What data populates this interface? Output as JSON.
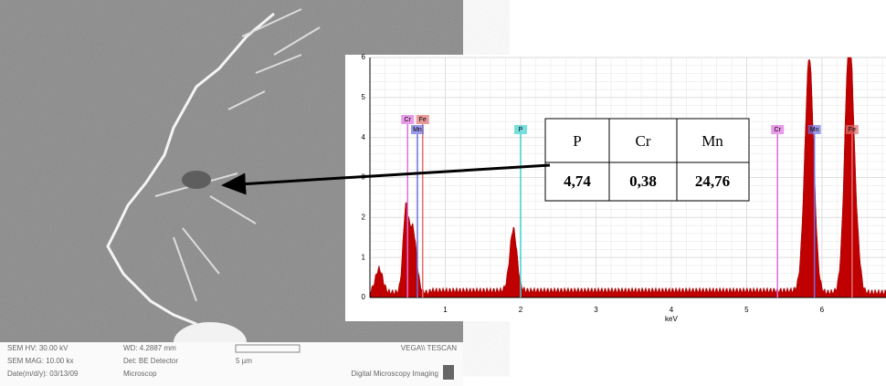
{
  "sem_info": {
    "hv": "SEM HV: 30.00 kV",
    "wd": "WD: 4.2887 mm",
    "brand": "VEGA\\\\ TESCAN",
    "mag": "SEM MAG: 10.00 kx",
    "det": "Det: BE Detector",
    "scale": "5 µm",
    "date": "Date(m/d/y): 03/13/09",
    "operator": "Microscop",
    "software": "Digital Microscopy Imaging"
  },
  "spectrum": {
    "x_label": "keV",
    "xlim": [
      0,
      6.85
    ],
    "ylim": [
      0,
      6
    ],
    "xticks": [
      1,
      2,
      3,
      4,
      5,
      6
    ],
    "yticks": [
      0,
      1,
      2,
      3,
      4,
      5,
      6
    ],
    "peak_labels": [
      {
        "label": "Cr",
        "x": 0.5,
        "row": 0,
        "color": "#e070e0"
      },
      {
        "label": "Fe",
        "x": 0.7,
        "row": 0,
        "color": "#e07070"
      },
      {
        "label": "Mn",
        "x": 0.63,
        "row": 1,
        "color": "#7070e0"
      },
      {
        "label": "P",
        "x": 2.0,
        "row": 1,
        "color": "#40d0d0"
      },
      {
        "label": "Cr",
        "x": 5.41,
        "row": 1,
        "color": "#e070e0"
      },
      {
        "label": "Mn",
        "x": 5.9,
        "row": 1,
        "color": "#7070e0"
      },
      {
        "label": "Fe",
        "x": 6.4,
        "row": 1,
        "color": "#e07070"
      }
    ]
  },
  "table": {
    "header": [
      "P",
      "Cr",
      "Mn"
    ],
    "rows": [
      [
        "4,74",
        "0,38",
        "24,76"
      ]
    ]
  }
}
